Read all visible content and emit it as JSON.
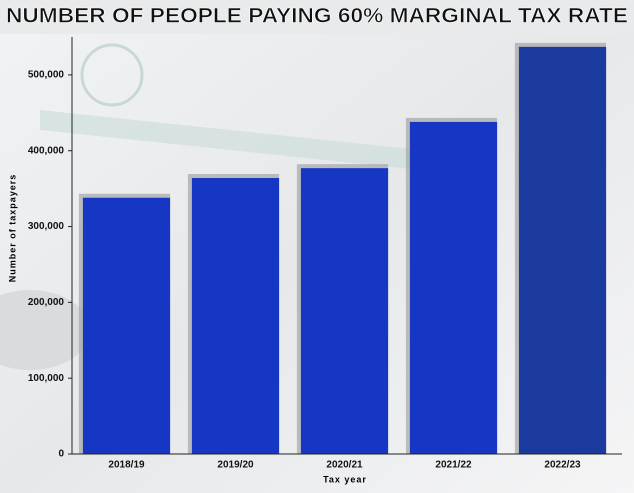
{
  "chart_data": {
    "type": "bar",
    "title": "NUMBER OF PEOPLE PAYING 60% MARGINAL TAX RATE",
    "y_label": "Number of taxpayers",
    "x_label": "Tax year",
    "categories": [
      "2018/19",
      "2019/20",
      "2020/21",
      "2021/22",
      "2022/23"
    ],
    "values": [
      338000,
      364000,
      377000,
      438000,
      537000
    ],
    "colors": [
      "#1537c4",
      "#1537c4",
      "#1537c4",
      "#1537c4",
      "#1a3a9e"
    ],
    "ylim": [
      0,
      550000
    ],
    "yticks": [
      0,
      {
        "value": 100000,
        "label": "100,000"
      },
      {
        "value": 200000,
        "label": "200,000"
      },
      {
        "value": 300000,
        "label": "300,000"
      },
      {
        "value": 400000,
        "label": "400,000"
      },
      {
        "value": 500000,
        "label": "500,000"
      }
    ]
  }
}
